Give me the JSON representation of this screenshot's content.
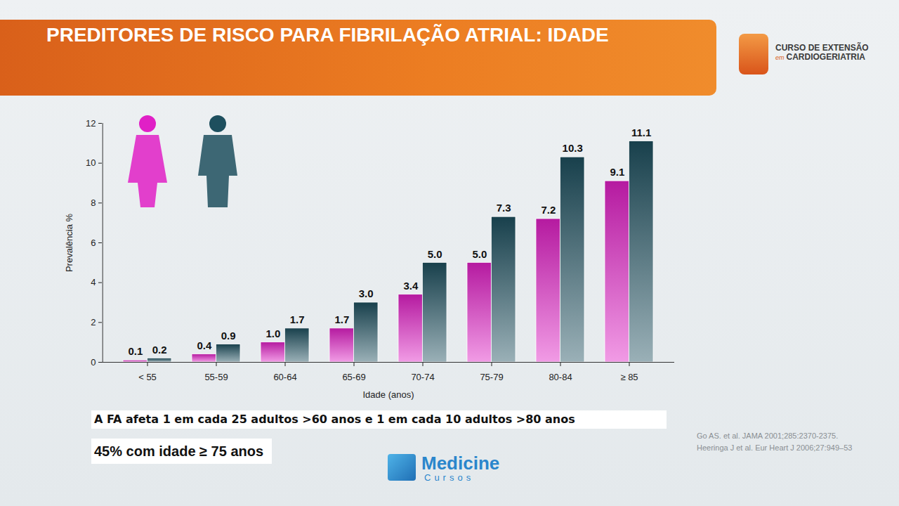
{
  "chart_data": {
    "type": "bar",
    "title": "PREDITORES DE RISCO PARA FIBRILAÇÃO ATRIAL: IDADE",
    "x_label": "Idade (anos)",
    "y_label": "Prevalência %",
    "categories": [
      "< 55",
      "55-59",
      "60-64",
      "65-69",
      "70-74",
      "75-79",
      "80-84",
      "≥ 85"
    ],
    "series": [
      {
        "color": "#e020c6",
        "values": [
          0.1,
          0.4,
          1.0,
          1.7,
          3.4,
          5.0,
          7.2,
          9.1
        ],
        "value_labels": [
          "0.1",
          "0.4",
          "1.0",
          "1.7",
          "3.4",
          "5.0",
          "7.2",
          "9.1"
        ]
      },
      {
        "color": "#1e4f5e",
        "values": [
          0.2,
          0.9,
          1.7,
          3.0,
          5.0,
          7.3,
          10.3,
          11.1
        ],
        "value_labels": [
          "0.2",
          "0.9",
          "1.7",
          "3.0",
          "5.0",
          "7.3",
          "10.3",
          "11.1"
        ]
      }
    ],
    "ylim": [
      0,
      12
    ],
    "yticks": [
      0,
      2,
      4,
      6,
      8,
      10,
      12
    ],
    "grid": false,
    "data_labels": true,
    "annotations": [
      "A FA afeta 1 em cada 25 adultos >60 anos e 1 em cada 10 adultos >80 anos",
      "45% com idade ≥ 75 anos"
    ]
  },
  "slide": {
    "logo": [
      "CURSO DE EXTENSÃO",
      "em",
      "CARDIOGERIATRIA"
    ],
    "brand": [
      "Medicine",
      "Cursos"
    ],
    "references": [
      "Go AS. et al. JAMA 2001;285:2370-2375.",
      "Heeringa J et al. Eur Heart J 2006;27:949–53"
    ]
  }
}
